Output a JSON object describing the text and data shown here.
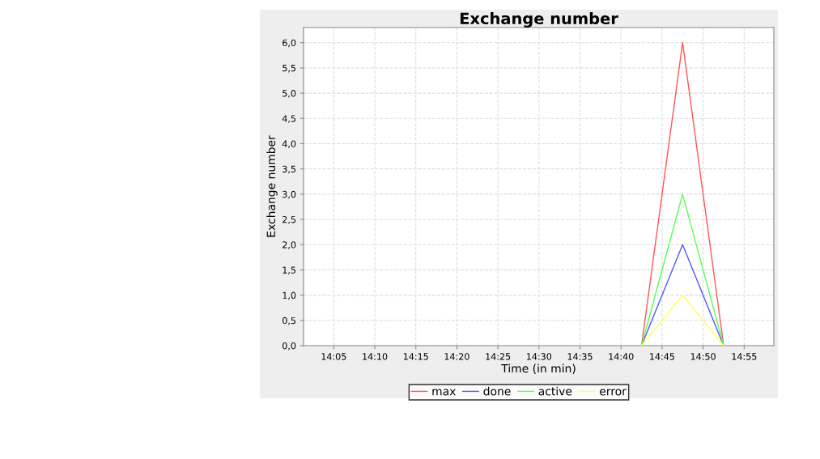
{
  "chart_data": {
    "type": "line",
    "title": "Exchange number",
    "xlabel": "Time (in min)",
    "ylabel": "Exchange number",
    "x": [
      14.7083,
      14.7917,
      14.875
    ],
    "series": [
      {
        "name": "max",
        "color": "#ff5555",
        "values": [
          0,
          6,
          0
        ]
      },
      {
        "name": "done",
        "color": "#5555ff",
        "values": [
          0,
          2,
          0
        ]
      },
      {
        "name": "active",
        "color": "#55ff55",
        "values": [
          0,
          3,
          0
        ]
      },
      {
        "name": "error",
        "color": "#ffff55",
        "values": [
          0,
          1,
          0
        ]
      }
    ],
    "xlim": [
      14.022,
      14.977
    ],
    "xticks": [
      {
        "value": 14.0833,
        "label": "14:05"
      },
      {
        "value": 14.1667,
        "label": "14:10"
      },
      {
        "value": 14.25,
        "label": "14:15"
      },
      {
        "value": 14.3333,
        "label": "14:20"
      },
      {
        "value": 14.4167,
        "label": "14:25"
      },
      {
        "value": 14.5,
        "label": "14:30"
      },
      {
        "value": 14.5833,
        "label": "14:35"
      },
      {
        "value": 14.6667,
        "label": "14:40"
      },
      {
        "value": 14.75,
        "label": "14:45"
      },
      {
        "value": 14.8333,
        "label": "14:50"
      },
      {
        "value": 14.9167,
        "label": "14:55"
      }
    ],
    "ylim": [
      0,
      6.3
    ],
    "yticks": [
      {
        "value": 0,
        "label": "0,0"
      },
      {
        "value": 0.5,
        "label": "0,5"
      },
      {
        "value": 1,
        "label": "1,0"
      },
      {
        "value": 1.5,
        "label": "1,5"
      },
      {
        "value": 2,
        "label": "2,0"
      },
      {
        "value": 2.5,
        "label": "2,5"
      },
      {
        "value": 3,
        "label": "3,0"
      },
      {
        "value": 3.5,
        "label": "3,5"
      },
      {
        "value": 4,
        "label": "4,0"
      },
      {
        "value": 4.5,
        "label": "4,5"
      },
      {
        "value": 5,
        "label": "5,0"
      },
      {
        "value": 5.5,
        "label": "5,5"
      },
      {
        "value": 6,
        "label": "6,0"
      }
    ],
    "grid": true,
    "legend": "bottom",
    "marker": "none",
    "line_style": "solid"
  }
}
